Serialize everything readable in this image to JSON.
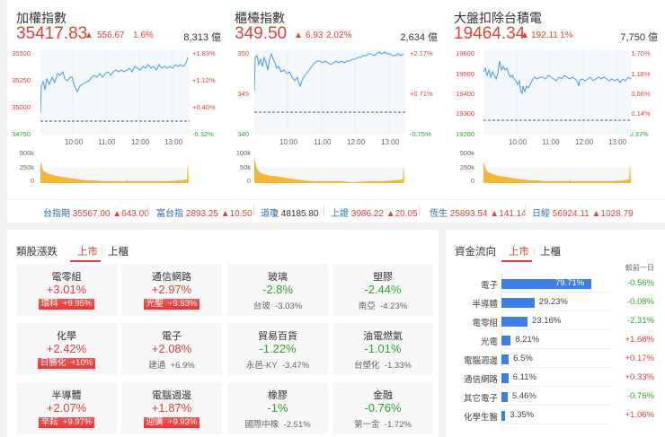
{
  "charts": [
    {
      "title": "加權指數",
      "price": "35417.83",
      "change": "556.67",
      "change_pct": "1.6%",
      "volume": "8,313 億",
      "y_left": [
        "35500",
        "35250",
        "35000",
        "34750"
      ],
      "y_right": [
        "+1.83%",
        "+1.12%",
        "+0.40%",
        "-0.32%"
      ],
      "x_ticks": [
        "10:00",
        "11:00",
        "12:00",
        "13:00"
      ],
      "vol_ticks": [
        "500k",
        "250k",
        "0"
      ]
    },
    {
      "title": "櫃檯指數",
      "price": "349.50",
      "change": "6.93",
      "change_pct": "2.02%",
      "volume": "2,634 億",
      "y_left": [
        "350",
        "345",
        "340"
      ],
      "y_right": [
        "+2.17%",
        "+0.71%",
        "-0.75%"
      ],
      "x_ticks": [
        "10:00",
        "11:00",
        "12:00",
        "13:00"
      ],
      "vol_ticks": [
        "100k",
        "50k",
        "0"
      ]
    },
    {
      "title": "大盤扣除台積電",
      "price": "19464.34",
      "change": "192.11",
      "change_pct": "1%",
      "volume": "7,750 億",
      "y_left": [
        "19600",
        "19500",
        "19400",
        "19300",
        "19200"
      ],
      "y_right": [
        "+1.70%",
        "+1.18%",
        "+0.66%",
        "+0.14%",
        "-0.37%"
      ],
      "x_ticks": [
        "10:00",
        "11:00",
        "12:00",
        "13:00"
      ],
      "vol_ticks": [
        "500k",
        "250k",
        "0"
      ]
    }
  ],
  "ticker": [
    {
      "name": "台指期",
      "value": "35567.00",
      "change": "▲643.00"
    },
    {
      "name": "富台指",
      "value": "2893.25",
      "change": "▲10.50"
    },
    {
      "name": "道瓊",
      "value": "48185.80",
      "change": ""
    },
    {
      "name": "上證",
      "value": "3986.22",
      "change": "▲20.05"
    },
    {
      "name": "恆生",
      "value": "25893.54",
      "change": "▲141.14"
    },
    {
      "name": "日經",
      "value": "56924.11",
      "change": "▲1028.79"
    }
  ],
  "sectors": {
    "title": "類股漲跌",
    "tabs": [
      "上市",
      "上櫃"
    ],
    "tiles": [
      {
        "name": "電零組",
        "pct": "+3.01%",
        "top_stock": "環科",
        "top_pct": "+9.95%",
        "dir": "up",
        "badge": true
      },
      {
        "name": "通信網路",
        "pct": "+2.97%",
        "top_stock": "光聖",
        "top_pct": "+9.93%",
        "dir": "up",
        "badge": true
      },
      {
        "name": "玻璃",
        "pct": "-2.8%",
        "top_stock": "台玻",
        "top_pct": "-3.03%",
        "dir": "dn",
        "badge": false
      },
      {
        "name": "塑膠",
        "pct": "-2.44%",
        "top_stock": "南亞",
        "top_pct": "-4.23%",
        "dir": "dn",
        "badge": false
      },
      {
        "name": "化學",
        "pct": "+2.42%",
        "top_stock": "日勝化",
        "top_pct": "+10%",
        "dir": "up",
        "badge": true
      },
      {
        "name": "電子",
        "pct": "+2.08%",
        "top_stock": "建通",
        "top_pct": "+6.9%",
        "dir": "up",
        "badge": false
      },
      {
        "name": "貿易百貨",
        "pct": "-1.22%",
        "top_stock": "永邑-KY",
        "top_pct": "-3.47%",
        "dir": "dn",
        "badge": false
      },
      {
        "name": "油電燃氣",
        "pct": "-1.01%",
        "top_stock": "台塑化",
        "top_pct": "-1.33%",
        "dir": "dn",
        "badge": false
      },
      {
        "name": "半導體",
        "pct": "+2.07%",
        "top_stock": "辛耘",
        "top_pct": "+9.97%",
        "dir": "up",
        "badge": true
      },
      {
        "name": "電腦週邊",
        "pct": "+1.87%",
        "top_stock": "迎廣",
        "top_pct": "+9.93%",
        "dir": "up",
        "badge": true
      },
      {
        "name": "橡膠",
        "pct": "-1%",
        "top_stock": "國際中橡",
        "top_pct": "-2.51%",
        "dir": "dn",
        "badge": false
      },
      {
        "name": "金融",
        "pct": "-0.76%",
        "top_stock": "第一金",
        "top_pct": "-1.72%",
        "dir": "dn",
        "badge": false
      }
    ]
  },
  "fund_flow": {
    "title": "資金流向",
    "tabs": [
      "上市",
      "上櫃"
    ],
    "column_header": "較前一日",
    "rows": [
      {
        "label": "電子",
        "value": "79.71%",
        "pct": 79.71,
        "change": "-0.56%",
        "dir": "dn"
      },
      {
        "label": "半導體",
        "value": "29.23%",
        "pct": 29.23,
        "change": "-0.08%",
        "dir": "dn"
      },
      {
        "label": "電零組",
        "value": "23.16%",
        "pct": 23.16,
        "change": "-2.31%",
        "dir": "dn"
      },
      {
        "label": "光電",
        "value": "8.21%",
        "pct": 8.21,
        "change": "+1.68%",
        "dir": "up"
      },
      {
        "label": "電腦週邊",
        "value": "6.5%",
        "pct": 6.5,
        "change": "+0.17%",
        "dir": "up"
      },
      {
        "label": "通信網路",
        "value": "6.11%",
        "pct": 6.11,
        "change": "+0.33%",
        "dir": "up"
      },
      {
        "label": "其它電子",
        "value": "5.46%",
        "pct": 5.46,
        "change": "-0.76%",
        "dir": "dn"
      },
      {
        "label": "化學生醫",
        "value": "3.35%",
        "pct": 3.35,
        "change": "+1.06%",
        "dir": "up"
      }
    ]
  },
  "colors": {
    "up": "#e0403c",
    "down": "#2fa52f",
    "line": "#4a9be0",
    "volume": "#f5b731",
    "bar": "#3c7fe6",
    "link": "#2a6fb7"
  }
}
